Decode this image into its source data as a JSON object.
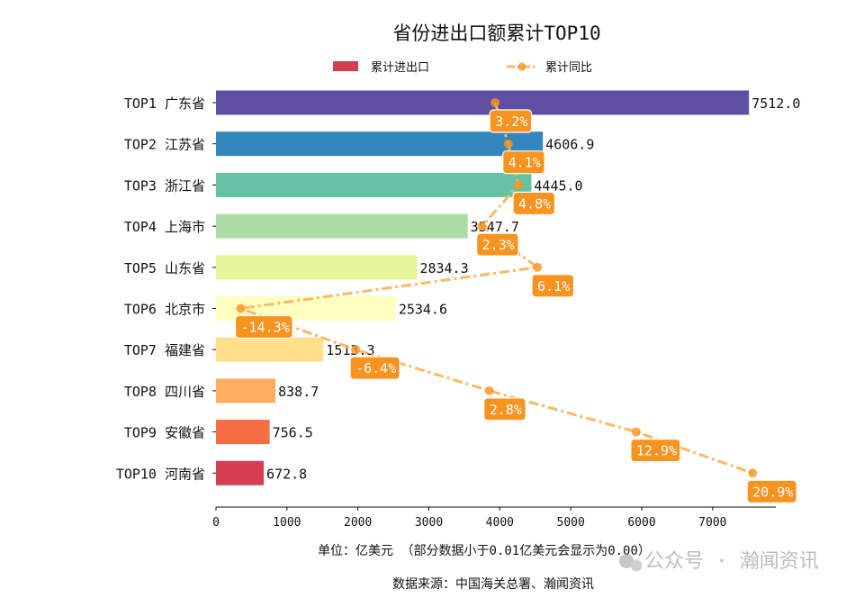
{
  "chart_data": {
    "type": "bar",
    "orientation": "horizontal",
    "title": "省份进出口额累计TOP10",
    "categories": [
      "TOP1 广东省",
      "TOP2 江苏省",
      "TOP3 浙江省",
      "TOP4 上海市",
      "TOP5 山东省",
      "TOP6 北京市",
      "TOP7 福建省",
      "TOP8 四川省",
      "TOP9 安徽省",
      "TOP10 河南省"
    ],
    "series": [
      {
        "name": "累计进出口",
        "type": "bar",
        "values": [
          7512.0,
          4606.9,
          4445.0,
          3547.7,
          2834.3,
          2534.6,
          1513.3,
          838.7,
          756.5,
          672.8
        ],
        "value_labels": [
          "7512.0",
          "4606.9",
          "4445.0",
          "3547.7",
          "2834.3",
          "2534.6",
          "1513.3",
          "838.7",
          "756.5",
          "672.8"
        ],
        "colors": [
          "#5e4fa2",
          "#3288bd",
          "#66c2a5",
          "#abdda4",
          "#e6f598",
          "#ffffbf",
          "#fee08b",
          "#fdae61",
          "#f46d43",
          "#d53e4f"
        ]
      },
      {
        "name": "累计同比",
        "type": "line",
        "line_style": "dash-dot",
        "color": "#fdb863",
        "marker_color": "#f7931e",
        "values": [
          3.2,
          4.1,
          4.8,
          2.3,
          6.1,
          -14.3,
          -6.4,
          2.8,
          12.9,
          20.9
        ],
        "value_labels": [
          "3.2%",
          "4.1%",
          "4.8%",
          "2.3%",
          "6.1%",
          "-14.3%",
          "-6.4%",
          "2.8%",
          "12.9%",
          "20.9%"
        ],
        "label_box_color": "#f7931e",
        "secondary_axis_hidden": true,
        "secondary_xlim": [
          -16.0,
          22.5
        ]
      }
    ],
    "xlim": [
      0,
      7890
    ],
    "xticks": [
      0,
      1000,
      2000,
      3000,
      4000,
      5000,
      6000,
      7000
    ],
    "xlabel": "单位：亿美元  （部分数据小于0.01亿美元会显示为0.00）",
    "source": "数据来源：中国海关总署、瀚闻资讯",
    "legend_position": "top-center",
    "grid": false
  },
  "watermark": "公众号 · 瀚闻资讯"
}
